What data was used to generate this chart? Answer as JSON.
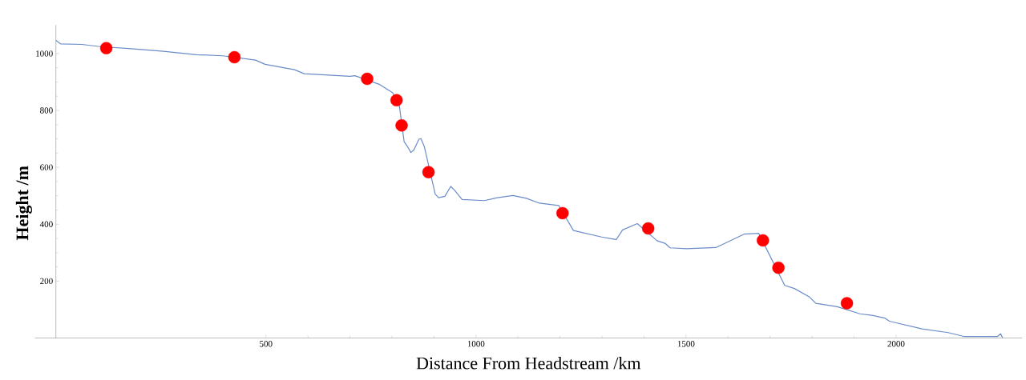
{
  "chart_data": {
    "type": "line",
    "xlabel": "Distance From Headstream /km",
    "ylabel": "Height /m",
    "xlim": [
      -50,
      2300
    ],
    "ylim": [
      0,
      1100
    ],
    "xticks": [
      500,
      1000,
      1500,
      2000
    ],
    "yticks": [
      200,
      400,
      600,
      800,
      1000
    ],
    "grid": false,
    "series": [
      {
        "type": "line",
        "color": "#6a8cc8",
        "marker": "none",
        "line_style": "solid",
        "x": [
          0,
          11,
          62,
          101,
          179,
          256,
          334,
          397,
          475,
          498,
          568,
          591,
          700,
          712,
          771,
          802,
          817,
          829,
          837,
          845,
          852,
          864,
          869,
          877,
          903,
          911,
          926,
          940,
          950,
          967,
          1020,
          1051,
          1088,
          1120,
          1151,
          1197,
          1232,
          1299,
          1334,
          1349,
          1384,
          1431,
          1451,
          1462,
          1501,
          1571,
          1638,
          1673,
          1735,
          1758,
          1793,
          1809,
          1860,
          1914,
          1945,
          1973,
          1984,
          2062,
          2124,
          2163,
          2241,
          2249,
          2254
        ],
        "values": [
          1046,
          1034,
          1032,
          1025,
          1017,
          1008,
          996,
          992,
          977,
          962,
          943,
          929,
          920,
          922,
          891,
          862,
          822,
          690,
          673,
          652,
          661,
          698,
          701,
          673,
          506,
          493,
          498,
          533,
          518,
          487,
          483,
          493,
          501,
          491,
          474,
          466,
          378,
          355,
          346,
          380,
          402,
          342,
          332,
          317,
          314,
          318,
          365,
          368,
          185,
          174,
          145,
          122,
          110,
          85,
          79,
          70,
          59,
          32,
          19,
          5,
          5,
          15,
          0
        ]
      },
      {
        "type": "scatter",
        "color": "#ff0000",
        "marker": "circle",
        "x": [
          120,
          425,
          741,
          811,
          823,
          887,
          1206,
          1410,
          1683,
          1720,
          1883
        ],
        "values": [
          1019,
          987,
          911,
          836,
          747,
          583,
          439,
          385,
          343,
          247,
          122
        ]
      }
    ]
  }
}
